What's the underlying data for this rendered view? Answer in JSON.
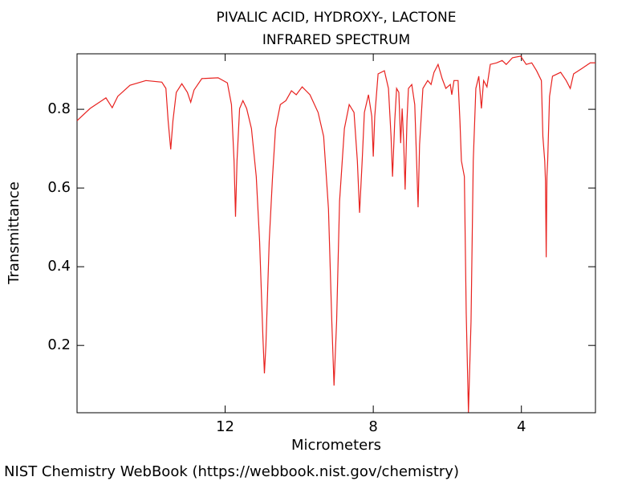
{
  "chart_data": {
    "type": "line",
    "title": "PIVALIC ACID, HYDROXY-, LACTONE",
    "subtitle": "INFRARED SPECTRUM",
    "x_label": "Micrometers",
    "y_label": "Transmittance",
    "source": "NIST Chemistry WebBook (https://webbook.nist.gov/chemistry)",
    "xlim": [
      16,
      2
    ],
    "ylim": [
      0.029,
      0.941
    ],
    "xticks": [
      12,
      8,
      4
    ],
    "yticks": [
      0.2,
      0.4,
      0.6,
      0.8
    ],
    "grid": false,
    "series": [
      {
        "name": "spectrum",
        "color": "#e8221f",
        "x": [
          16.0,
          15.65,
          15.22,
          15.05,
          14.9,
          14.57,
          14.14,
          13.71,
          13.6,
          13.54,
          13.47,
          13.41,
          13.32,
          13.17,
          13.02,
          12.93,
          12.84,
          12.63,
          12.19,
          11.94,
          11.83,
          11.76,
          11.72,
          11.68,
          11.61,
          11.52,
          11.42,
          11.29,
          11.16,
          11.07,
          10.98,
          10.94,
          10.9,
          10.81,
          10.72,
          10.64,
          10.51,
          10.36,
          10.21,
          10.08,
          9.92,
          9.71,
          9.49,
          9.34,
          9.21,
          9.12,
          9.06,
          8.99,
          8.91,
          8.78,
          8.65,
          8.52,
          8.43,
          8.37,
          8.3,
          8.24,
          8.13,
          8.04,
          8.0,
          7.96,
          7.87,
          7.7,
          7.59,
          7.52,
          7.48,
          7.42,
          7.37,
          7.31,
          7.26,
          7.22,
          7.18,
          7.14,
          7.09,
          7.05,
          6.96,
          6.88,
          6.83,
          6.79,
          6.75,
          6.66,
          6.53,
          6.44,
          6.36,
          6.25,
          6.14,
          6.04,
          5.92,
          5.88,
          5.82,
          5.71,
          5.66,
          5.62,
          5.54,
          5.49,
          5.43,
          5.36,
          5.3,
          5.23,
          5.15,
          5.08,
          5.02,
          4.93,
          4.84,
          4.67,
          4.52,
          4.41,
          4.24,
          4.02,
          3.87,
          3.72,
          3.59,
          3.46,
          3.42,
          3.37,
          3.35,
          3.33,
          3.31,
          3.29,
          3.24,
          3.16,
          2.94,
          2.79,
          2.68,
          2.59,
          2.36,
          2.14,
          2.0
        ],
        "values": [
          0.771,
          0.802,
          0.829,
          0.804,
          0.833,
          0.861,
          0.873,
          0.869,
          0.853,
          0.771,
          0.698,
          0.771,
          0.843,
          0.865,
          0.843,
          0.818,
          0.849,
          0.878,
          0.88,
          0.867,
          0.812,
          0.669,
          0.527,
          0.669,
          0.802,
          0.822,
          0.802,
          0.751,
          0.629,
          0.465,
          0.22,
          0.129,
          0.2,
          0.465,
          0.629,
          0.751,
          0.812,
          0.822,
          0.847,
          0.837,
          0.857,
          0.837,
          0.792,
          0.731,
          0.547,
          0.261,
          0.098,
          0.261,
          0.567,
          0.751,
          0.812,
          0.792,
          0.669,
          0.537,
          0.669,
          0.792,
          0.837,
          0.782,
          0.68,
          0.782,
          0.89,
          0.898,
          0.853,
          0.731,
          0.629,
          0.771,
          0.853,
          0.843,
          0.714,
          0.802,
          0.72,
          0.596,
          0.771,
          0.853,
          0.863,
          0.812,
          0.669,
          0.551,
          0.71,
          0.853,
          0.873,
          0.863,
          0.894,
          0.914,
          0.878,
          0.853,
          0.863,
          0.837,
          0.873,
          0.873,
          0.771,
          0.669,
          0.629,
          0.282,
          0.03,
          0.261,
          0.669,
          0.853,
          0.884,
          0.802,
          0.873,
          0.857,
          0.914,
          0.918,
          0.924,
          0.914,
          0.931,
          0.935,
          0.914,
          0.918,
          0.898,
          0.873,
          0.731,
          0.669,
          0.618,
          0.424,
          0.631,
          0.669,
          0.833,
          0.884,
          0.894,
          0.873,
          0.853,
          0.89,
          0.904,
          0.918,
          0.918
        ]
      }
    ]
  }
}
